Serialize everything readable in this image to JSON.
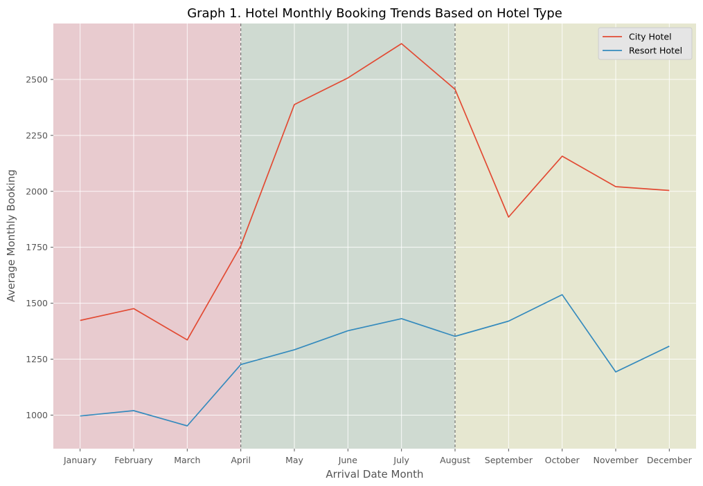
{
  "chart_data": {
    "type": "line",
    "title": "Graph 1. Hotel Monthly Booking Trends Based on Hotel Type",
    "xlabel": "Arrival Date Month",
    "ylabel": "Average Monthly Booking",
    "categories": [
      "January",
      "February",
      "March",
      "April",
      "May",
      "June",
      "July",
      "August",
      "September",
      "October",
      "November",
      "December"
    ],
    "ylim": [
      850,
      2750
    ],
    "yticks": [
      1000,
      1250,
      1500,
      1750,
      2000,
      2250,
      2500
    ],
    "grid": true,
    "legend_position": "top-right",
    "series": [
      {
        "name": "City Hotel",
        "color": "#E24A33",
        "values": [
          1423,
          1476,
          1336,
          1757,
          2388,
          2507,
          2660,
          2456,
          1885,
          2157,
          2021,
          2004
        ]
      },
      {
        "name": "Resort Hotel",
        "color": "#348ABD",
        "values": [
          996,
          1020,
          952,
          1226,
          1292,
          1377,
          1431,
          1352,
          1420,
          1538,
          1193,
          1308
        ]
      }
    ],
    "bands": [
      {
        "from": "January",
        "to": "April",
        "color": "#E8CBCF"
      },
      {
        "from": "April",
        "to": "August",
        "color": "#CFDAD1"
      },
      {
        "from": "August",
        "to": "December",
        "color": "#E6E7D0"
      }
    ],
    "vlines": [
      "April",
      "August"
    ]
  }
}
